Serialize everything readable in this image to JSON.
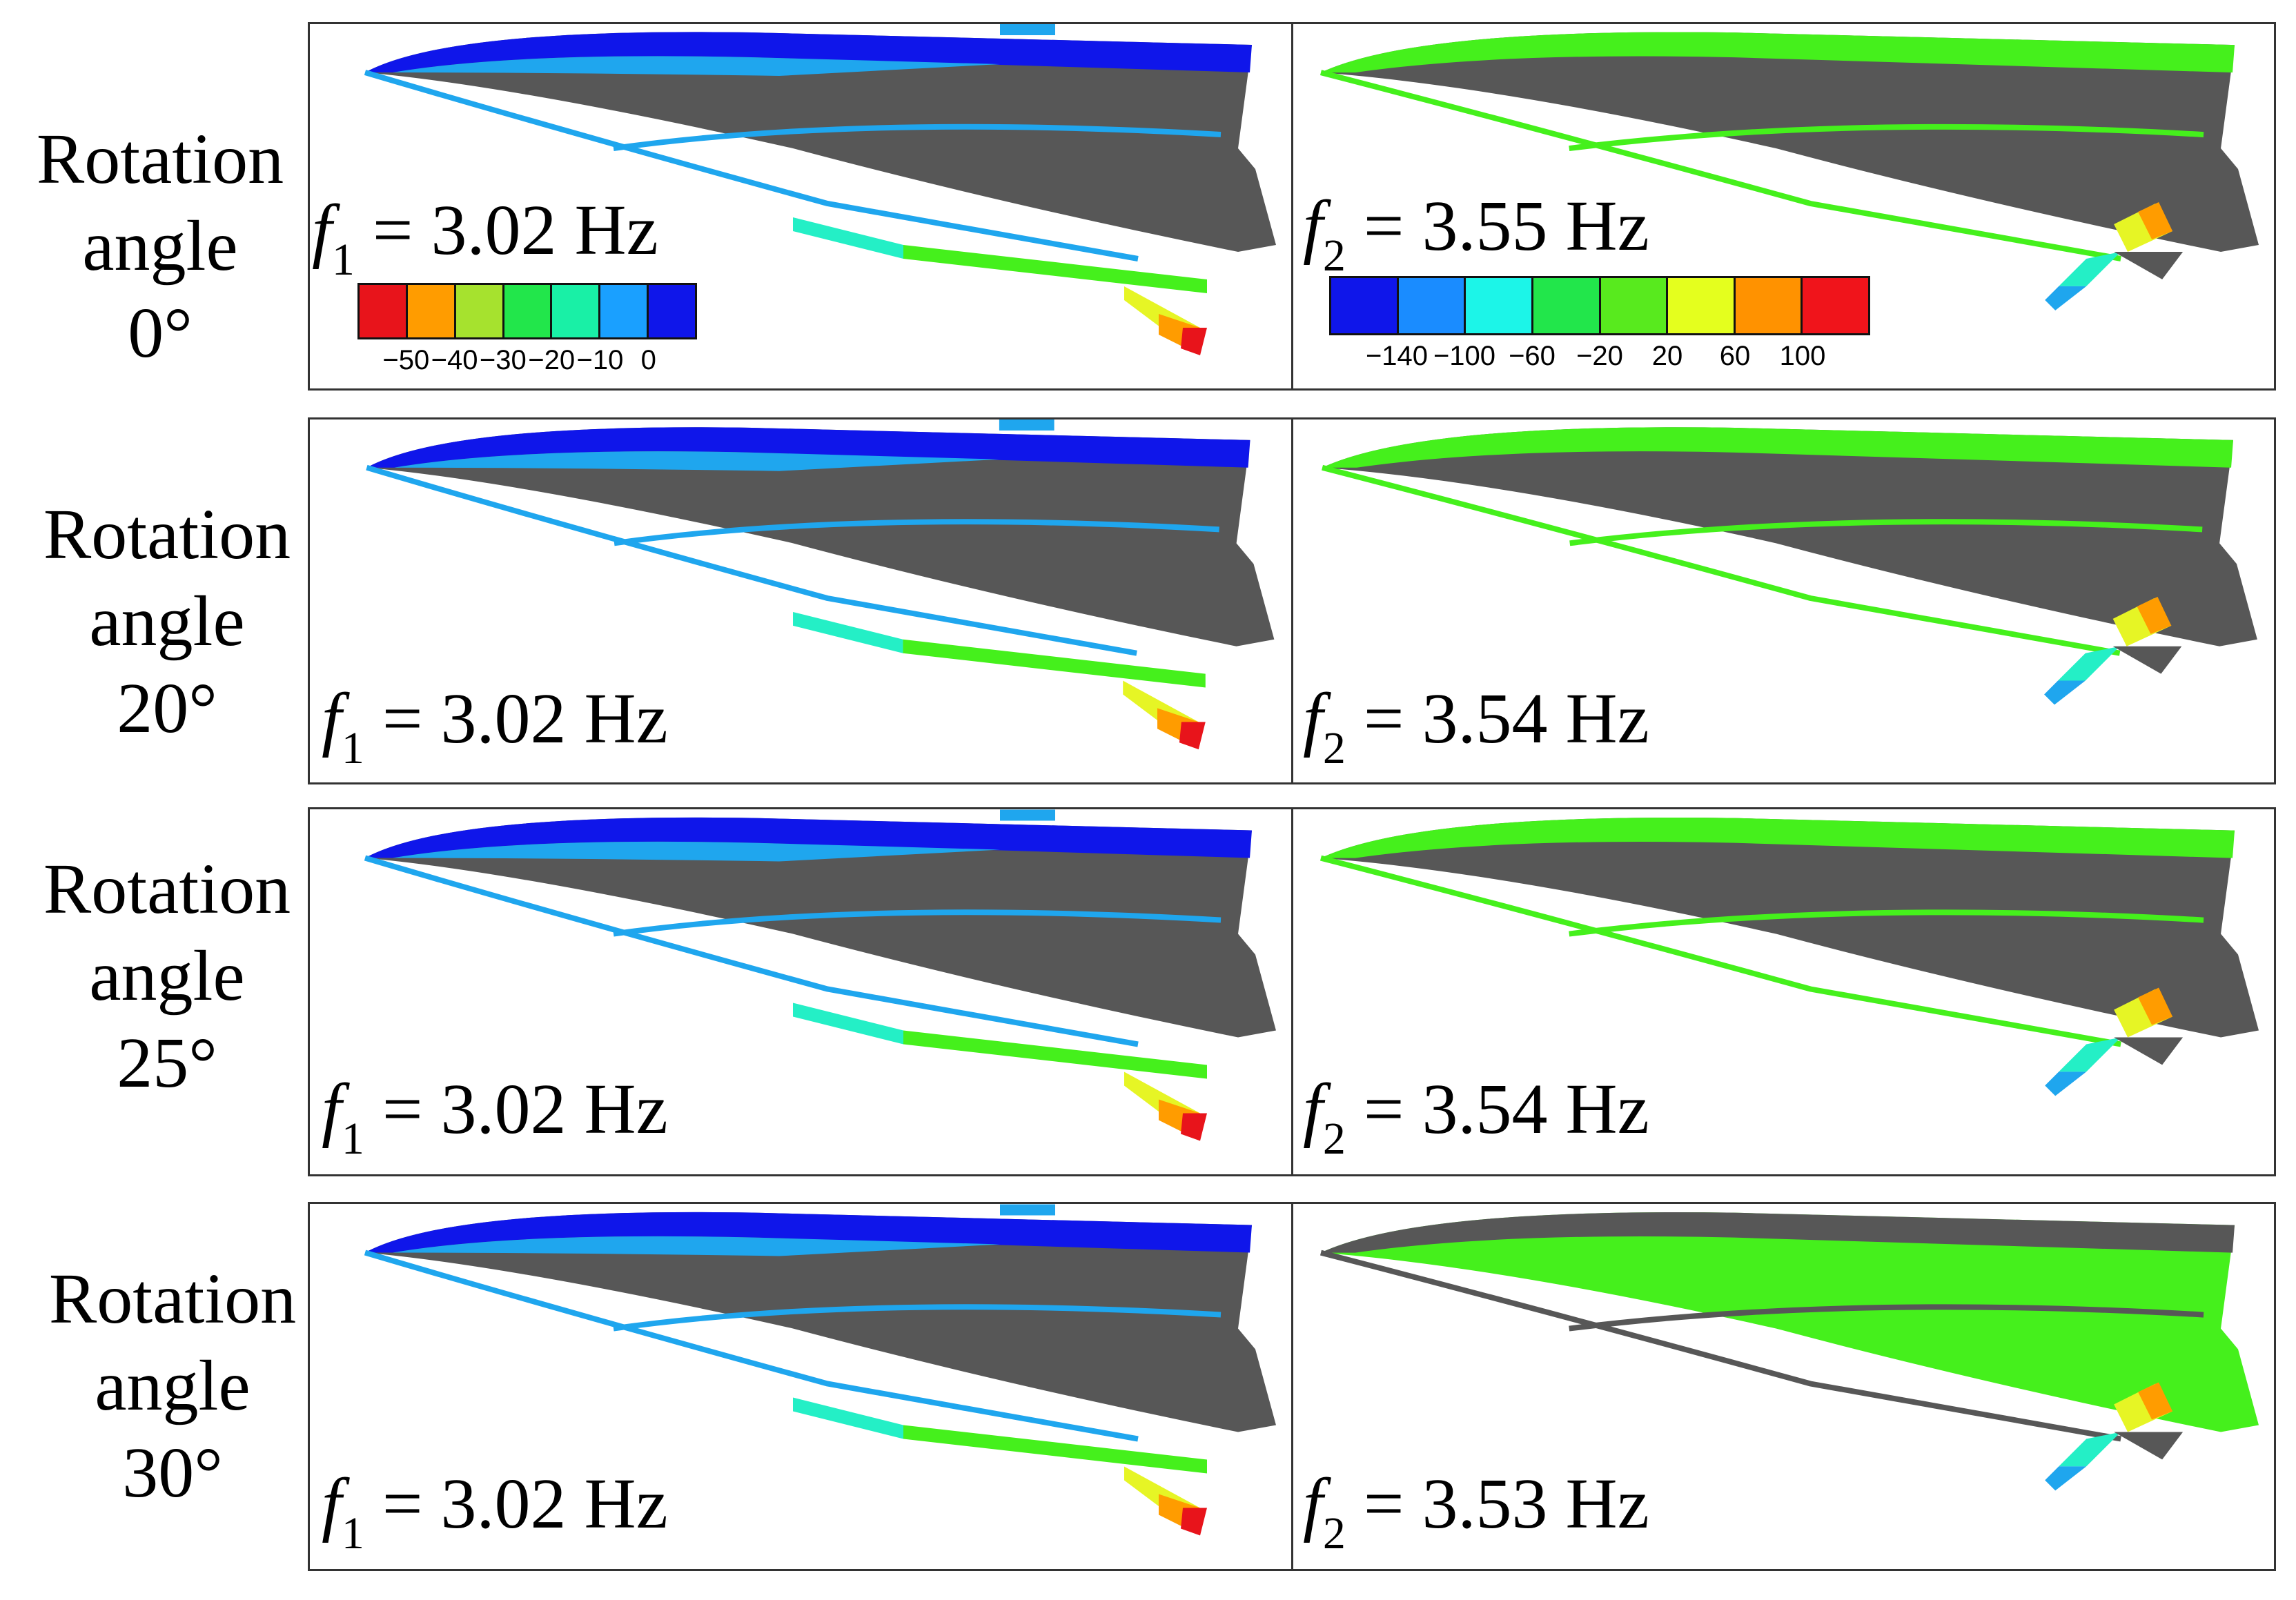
{
  "rows": [
    {
      "label_line1": "Rotation",
      "label_line2": "angle",
      "label_line3": "0°",
      "f1_sym": "f",
      "f1_sub": "1",
      "f1_value": "= 3.02 Hz",
      "f2_sym": "f",
      "f2_sub": "2",
      "f2_value": "= 3.55 Hz"
    },
    {
      "label_line1": "Rotation",
      "label_line2": "angle",
      "label_line3": "20°",
      "f1_sym": "f",
      "f1_sub": "1",
      "f1_value": "= 3.02 Hz",
      "f2_sym": "f",
      "f2_sub": "2",
      "f2_value": "= 3.54 Hz"
    },
    {
      "label_line1": "Rotation",
      "label_line2": "angle",
      "label_line3": "25°",
      "f1_sym": "f",
      "f1_sub": "1",
      "f1_value": "= 3.02 Hz",
      "f2_sym": "f",
      "f2_sub": "2",
      "f2_value": "= 3.54 Hz"
    },
    {
      "label_line1": "Rotation",
      "label_line2": "angle",
      "label_line3": "30°",
      "f1_sym": "f",
      "f1_sub": "1",
      "f1_value": "= 3.02 Hz",
      "f2_sym": "f",
      "f2_sub": "2",
      "f2_value": "= 3.53 Hz"
    }
  ],
  "legend_mode1": {
    "colors": [
      "#e8141b",
      "#ff9c00",
      "#a6e22e",
      "#22e64b",
      "#19f0a6",
      "#1aa0ff",
      "#0f16ea"
    ],
    "ticks": [
      "-50",
      "-40",
      "-30",
      "-20",
      "-10",
      "0"
    ]
  },
  "legend_mode2": {
    "colors": [
      "#0f16ea",
      "#1a8cff",
      "#1cf5e8",
      "#22e64b",
      "#58ea1e",
      "#e4ff1e",
      "#ff9200",
      "#f0141b"
    ],
    "ticks": [
      "-140",
      "-100",
      "-60",
      "-20",
      "20",
      "60",
      "100"
    ]
  },
  "colors": {
    "shell": "#575757",
    "deep_blue": "#0f16ea",
    "light_blue": "#1fa6ee",
    "cyan": "#24efc6",
    "green": "#45f01c",
    "yellow": "#e6f525",
    "orange": "#ff9c00",
    "red": "#e8141b"
  }
}
